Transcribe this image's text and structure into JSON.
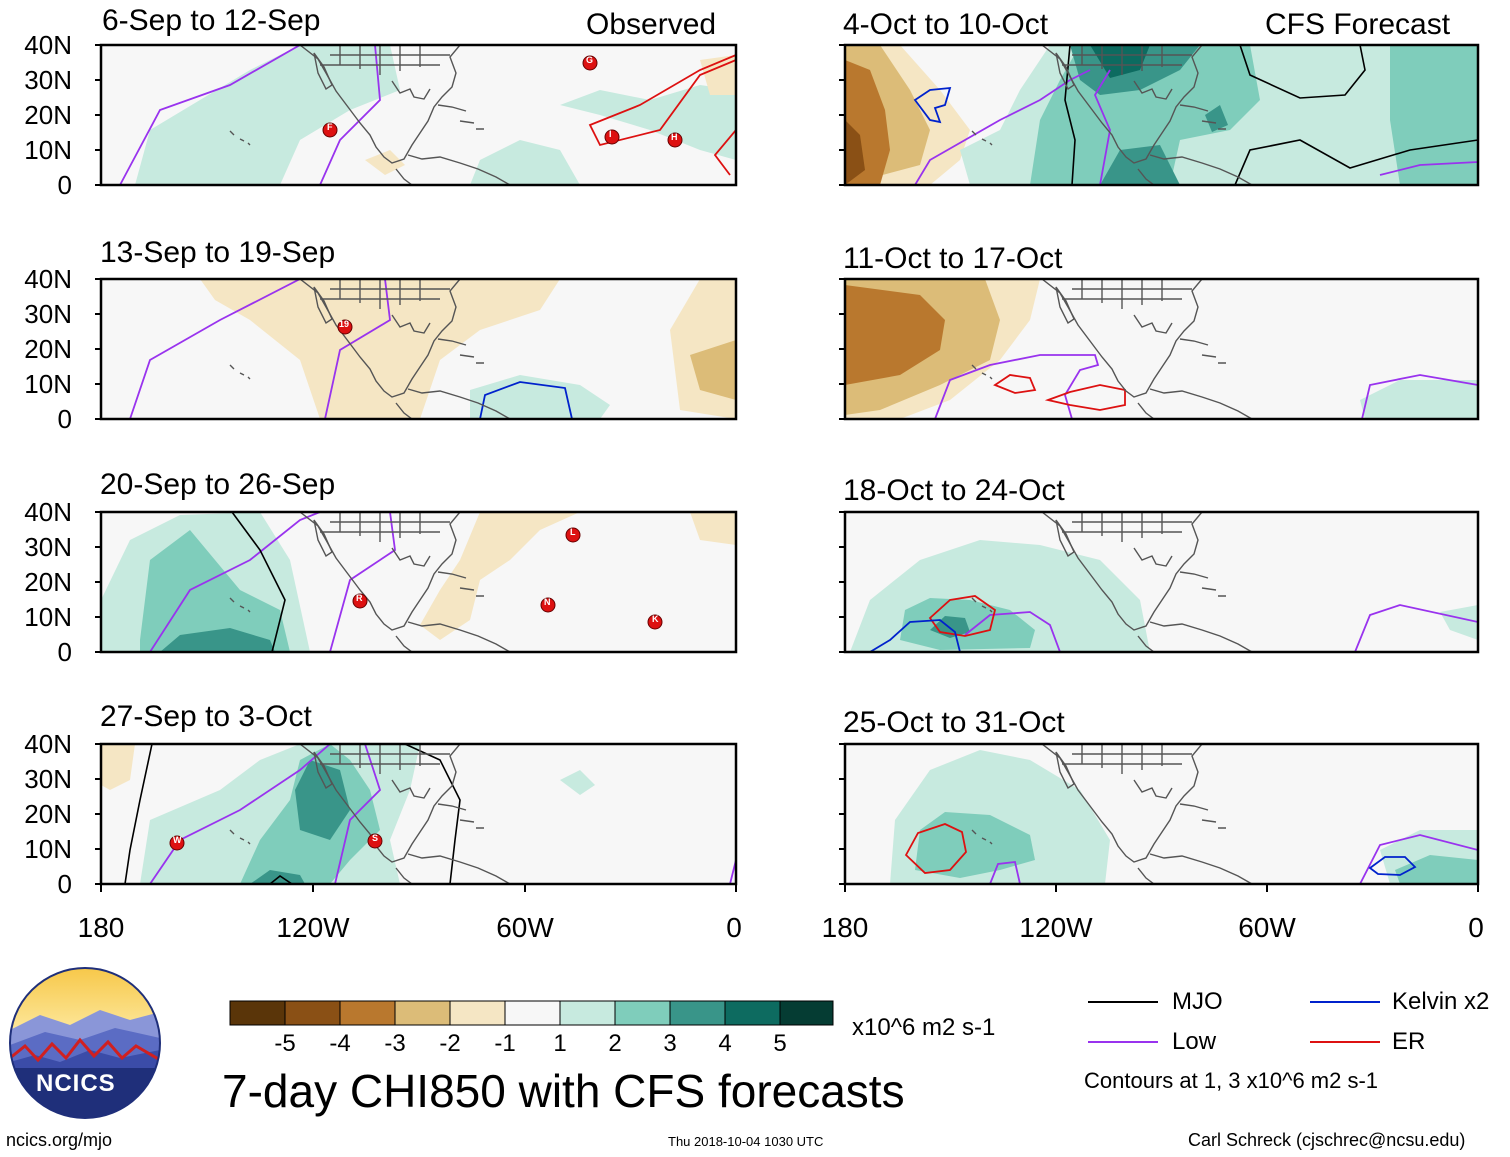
{
  "title": "7-day CHI850 with CFS forecasts",
  "header": {
    "left_label": "Observed",
    "right_label": "CFS Forecast"
  },
  "y_ticks": [
    "40N",
    "30N",
    "20N",
    "10N",
    "0"
  ],
  "x_ticks": [
    "180",
    "120W",
    "60W",
    "0"
  ],
  "panels": [
    {
      "title": "6-Sep to 12-Sep",
      "storms": [
        "G",
        "F",
        "I",
        "H"
      ]
    },
    {
      "title": "13-Sep to 19-Sep",
      "storms": [
        "19"
      ]
    },
    {
      "title": "20-Sep to 26-Sep",
      "storms": [
        "L",
        "R",
        "N",
        "K"
      ]
    },
    {
      "title": "27-Sep to 3-Oct",
      "storms": [
        "W",
        "S"
      ]
    },
    {
      "title": "4-Oct to 10-Oct",
      "storms": []
    },
    {
      "title": "11-Oct to 17-Oct",
      "storms": []
    },
    {
      "title": "18-Oct to 24-Oct",
      "storms": []
    },
    {
      "title": "25-Oct to 31-Oct",
      "storms": []
    }
  ],
  "colorbar": {
    "ticks": [
      "-5",
      "-4",
      "-3",
      "-2",
      "-1",
      "1",
      "2",
      "3",
      "4",
      "5"
    ],
    "colors": [
      "#5a3509",
      "#8a5015",
      "#b9782e",
      "#dcbc78",
      "#f5e6c4",
      "#f7f7f7",
      "#c7eadf",
      "#7fcdbb",
      "#399589",
      "#0d6b60",
      "#053c33"
    ],
    "units": "x10^6 m2 s-1"
  },
  "legend": {
    "items": [
      {
        "label": "MJO",
        "color": "#000000"
      },
      {
        "label": "Kelvin x2",
        "color": "#0022cc"
      },
      {
        "label": "Low",
        "color": "#9933ee"
      },
      {
        "label": "ER",
        "color": "#dd1111"
      }
    ],
    "note": "Contours at 1, 3 x10^6 m2 s-1"
  },
  "footer": {
    "logo_text": "NCICS",
    "url": "ncics.org/mjo",
    "timestamp": "Thu 2018-10-04 1030 UTC",
    "credit": "Carl Schreck (cjschrec@ncsu.edu)"
  }
}
